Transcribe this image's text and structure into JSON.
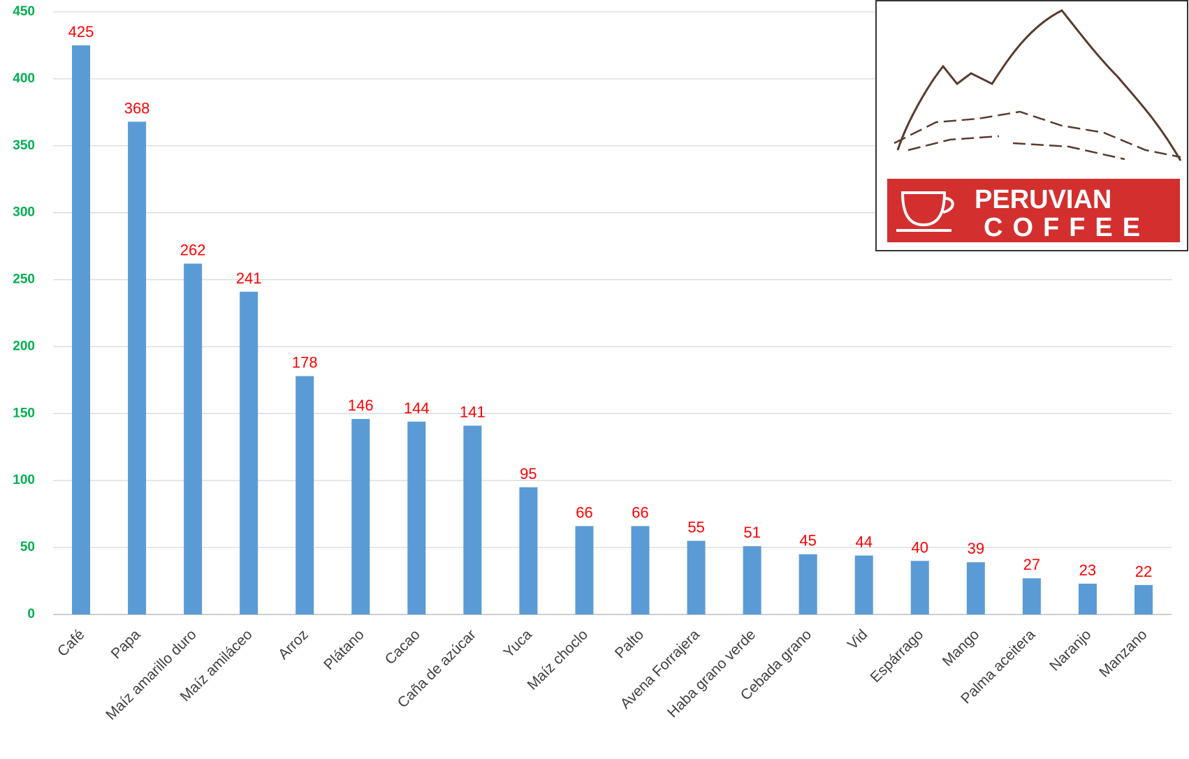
{
  "chart_data": {
    "type": "bar",
    "categories": [
      "Café",
      "Papa",
      "Maíz amarillo duro",
      "Maíz amiláceo",
      "Arroz",
      "Plátano",
      "Cacao",
      "Caña de azúcar",
      "Yuca",
      "Maíz choclo",
      "Palto",
      "Avena Forrajera",
      "Haba grano verde",
      "Cebada grano",
      "Vid",
      "Espárrago",
      "Mango",
      "Palma aceitera",
      "Naranjo",
      "Manzano"
    ],
    "values": [
      425,
      368,
      262,
      241,
      178,
      146,
      144,
      141,
      95,
      66,
      66,
      55,
      51,
      45,
      44,
      40,
      39,
      27,
      23,
      22
    ],
    "color": "#5b9bd5",
    "value_label_color": "#ff0000",
    "ylim": [
      0,
      450
    ],
    "yticks": [
      0,
      50,
      100,
      150,
      200,
      250,
      300,
      350,
      400,
      450
    ],
    "grid": true
  },
  "logo": {
    "line1": "PERUVIAN",
    "line2": "COFFEE"
  }
}
